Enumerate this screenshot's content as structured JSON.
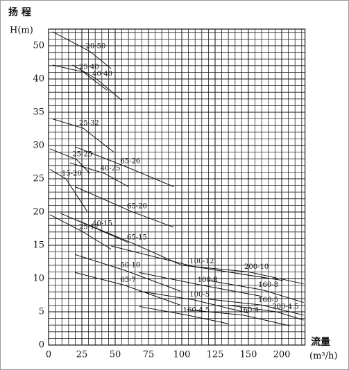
{
  "chart_data": {
    "type": "line",
    "y_title": "扬 程",
    "y_unit": "H(m)",
    "x_title": "流量",
    "x_unit": "(m³/h)",
    "xlim": [
      0,
      235
    ],
    "ylim": [
      0,
      55
    ],
    "xticks": [
      0,
      25,
      50,
      75,
      100,
      125,
      150,
      200
    ],
    "yticks": [
      0,
      5,
      10,
      15,
      20,
      25,
      30,
      35,
      40,
      50
    ],
    "grid": {
      "x_divisions": 5,
      "y_divisions": 5
    },
    "line_color": "#111111",
    "series": [
      {
        "name": "20-50",
        "color": "#d0322a",
        "x": [
          3,
          31,
          47
        ],
        "values": [
          54.2,
          48.3,
          43.1
        ]
      },
      {
        "name": "25-40",
        "color": "#d0322a",
        "x": [
          3,
          26,
          44
        ],
        "values": [
          44.2,
          42.1,
          38.3
        ]
      },
      {
        "name": "40-40",
        "color": "#d0322a",
        "x": [
          18,
          36,
          55
        ],
        "values": [
          44.2,
          40,
          36.8
        ]
      },
      {
        "name": "25-32",
        "color": "#d0322a",
        "x": [
          3,
          26,
          49
        ],
        "values": [
          34,
          32.6,
          29
        ]
      },
      {
        "name": "25-25",
        "color": "#d0322a",
        "x": [
          1,
          21,
          31
        ],
        "values": [
          29.5,
          27.9,
          25.8
        ]
      },
      {
        "name": "40-25",
        "color": "#d0322a",
        "x": [
          16,
          42,
          60
        ],
        "values": [
          27.4,
          25.8,
          23.8
        ]
      },
      {
        "name": "65-26",
        "color": "#d0322a",
        "x": [
          20,
          57,
          94
        ],
        "values": [
          29.8,
          26.9,
          23.8
        ]
      },
      {
        "name": "15-20",
        "color": "#d0322a",
        "x": [
          1,
          13,
          29
        ],
        "values": [
          26.4,
          25,
          20.1
        ]
      },
      {
        "name": "65-20",
        "color": "#d0322a",
        "x": [
          20,
          62,
          94
        ],
        "values": [
          23.8,
          20.1,
          17.7
        ]
      },
      {
        "name": "40-15",
        "color": "#d0322a",
        "x": [
          9,
          36,
          60
        ],
        "values": [
          19.8,
          17.5,
          15.4
        ]
      },
      {
        "name": "25-17",
        "color": "#d0322a",
        "x": [
          1,
          26,
          47
        ],
        "values": [
          19.6,
          17,
          14.4
        ]
      },
      {
        "name": "65-15",
        "color": "#d0322a",
        "x": [
          21,
          62,
          99
        ],
        "values": [
          18.8,
          15.4,
          12.1
        ]
      },
      {
        "name": "100-12",
        "color": "#d0322a",
        "x": [
          47,
          109,
          202
        ],
        "values": [
          14.9,
          11.8,
          9.7
        ]
      },
      {
        "name": "200-10",
        "color": "#d0322a",
        "x": [
          99,
          150,
          233
        ],
        "values": [
          12,
          11,
          9.2
        ]
      },
      {
        "name": "50-10",
        "color": "#d0322a",
        "x": [
          20,
          57,
          99
        ],
        "values": [
          13.6,
          11.25,
          8.1
        ]
      },
      {
        "name": "100-8",
        "color": "#d0322a",
        "x": [
          68,
          115,
          171
        ],
        "values": [
          10.9,
          9,
          7.3
        ]
      },
      {
        "name": "160-8",
        "color": "#d0322a",
        "x": [
          120,
          171,
          233
        ],
        "values": [
          9.7,
          8.3,
          6.4
        ]
      },
      {
        "name": "65-7",
        "color": "#d0322a",
        "x": [
          20,
          57,
          99
        ],
        "values": [
          10.9,
          9,
          6
        ]
      },
      {
        "name": "100-5",
        "color": "#d0322a",
        "x": [
          68,
          109,
          150
        ],
        "values": [
          8.1,
          6.8,
          4.8
        ]
      },
      {
        "name": "160-5",
        "color": "#d0322a",
        "x": [
          120,
          171,
          233
        ],
        "values": [
          6.9,
          6,
          4.5
        ]
      },
      {
        "name": "200-4.5",
        "color": "#d0322a",
        "x": [
          135,
          192,
          233
        ],
        "values": [
          6,
          5,
          3.75
        ]
      },
      {
        "name": "160-4",
        "color": "#d0322a",
        "x": [
          104,
          146,
          212
        ],
        "values": [
          5.3,
          4.5,
          2.9
        ]
      },
      {
        "name": "160-4.5",
        "color": "#d0322a",
        "x": [
          68,
          104,
          135
        ],
        "values": [
          5.8,
          4.5,
          3.2
        ]
      }
    ]
  }
}
